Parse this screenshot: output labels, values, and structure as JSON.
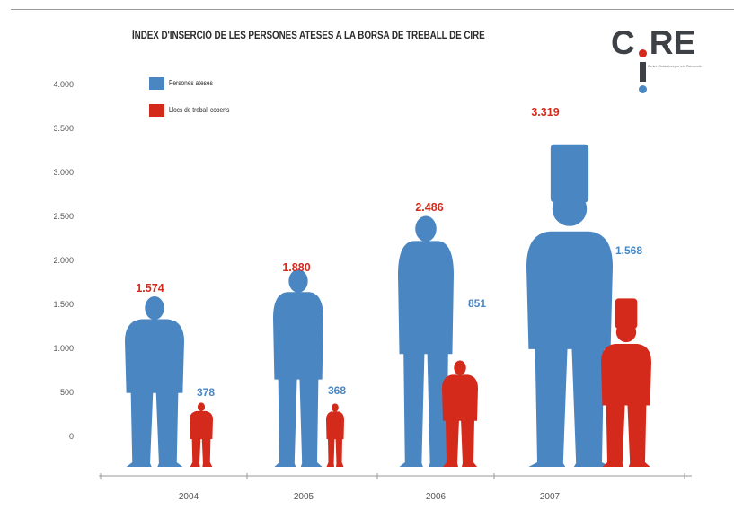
{
  "colors": {
    "blue": "#4a86c2",
    "red": "#d42a1c",
    "axis": "#9a9a9a",
    "logo_dot": "#d42a1c",
    "logo_text": "#3d4045"
  },
  "logo": {
    "text": "CIRE",
    "subtitle": "Centre d'Iniciatives per a la Reinserció"
  },
  "chart_data": {
    "type": "bar",
    "title": "ÍNDEX D'INSERCIÓ DE LES PERSONES ATESES A LA BORSA DE TREBALL DE CIRE",
    "categories": [
      "2004",
      "2005",
      "2006",
      "2007"
    ],
    "series": [
      {
        "name": "Persones ateses",
        "color": "#4a86c2",
        "values": [
          1574,
          1880,
          2486,
          3319
        ],
        "labels": [
          "1.574",
          "1.880",
          "2.486",
          "3.319"
        ],
        "label_color": "#d42a1c"
      },
      {
        "name": "Llocs de treball coberts",
        "color": "#d42a1c",
        "values": [
          378,
          368,
          851,
          1568
        ],
        "labels": [
          "378",
          "368",
          "851",
          "1.568"
        ],
        "label_color": "#4a86c2"
      }
    ],
    "y_ticks": [
      0,
      500,
      1000,
      1500,
      2000,
      2500,
      3000,
      3500,
      4000
    ],
    "y_tick_labels": [
      "0",
      "500",
      "1.000",
      "1.500",
      "2.000",
      "2.500",
      "3.000",
      "3.500",
      "4.000"
    ],
    "ylim": [
      0,
      4000
    ],
    "legend_position": "top-left",
    "grid": false
  }
}
